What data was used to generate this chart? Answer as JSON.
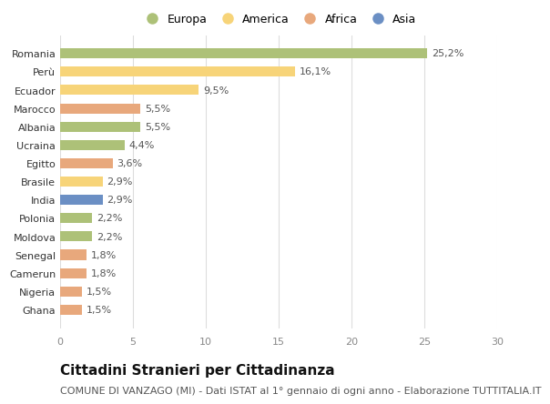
{
  "countries": [
    "Romania",
    "Perù",
    "Ecuador",
    "Marocco",
    "Albania",
    "Ucraina",
    "Egitto",
    "Brasile",
    "India",
    "Polonia",
    "Moldova",
    "Senegal",
    "Camerun",
    "Nigeria",
    "Ghana"
  ],
  "values": [
    25.2,
    16.1,
    9.5,
    5.5,
    5.5,
    4.4,
    3.6,
    2.9,
    2.9,
    2.2,
    2.2,
    1.8,
    1.8,
    1.5,
    1.5
  ],
  "labels": [
    "25,2%",
    "16,1%",
    "9,5%",
    "5,5%",
    "5,5%",
    "4,4%",
    "3,6%",
    "2,9%",
    "2,9%",
    "2,2%",
    "2,2%",
    "1,8%",
    "1,8%",
    "1,5%",
    "1,5%"
  ],
  "continents": [
    "Europa",
    "America",
    "America",
    "Africa",
    "Europa",
    "Europa",
    "Africa",
    "America",
    "Asia",
    "Europa",
    "Europa",
    "Africa",
    "Africa",
    "Africa",
    "Africa"
  ],
  "continent_colors": {
    "Europa": "#adc178",
    "America": "#f7d479",
    "Africa": "#e8a87c",
    "Asia": "#6b8fc4"
  },
  "legend_order": [
    "Europa",
    "America",
    "Africa",
    "Asia"
  ],
  "xlim": [
    0,
    30
  ],
  "xticks": [
    0,
    5,
    10,
    15,
    20,
    25,
    30
  ],
  "title": "Cittadini Stranieri per Cittadinanza",
  "subtitle": "COMUNE DI VANZAGO (MI) - Dati ISTAT al 1° gennaio di ogni anno - Elaborazione TUTTITALIA.IT",
  "background_color": "#ffffff",
  "bar_height": 0.55,
  "title_fontsize": 11,
  "subtitle_fontsize": 8,
  "label_fontsize": 8,
  "tick_fontsize": 8,
  "legend_fontsize": 9
}
